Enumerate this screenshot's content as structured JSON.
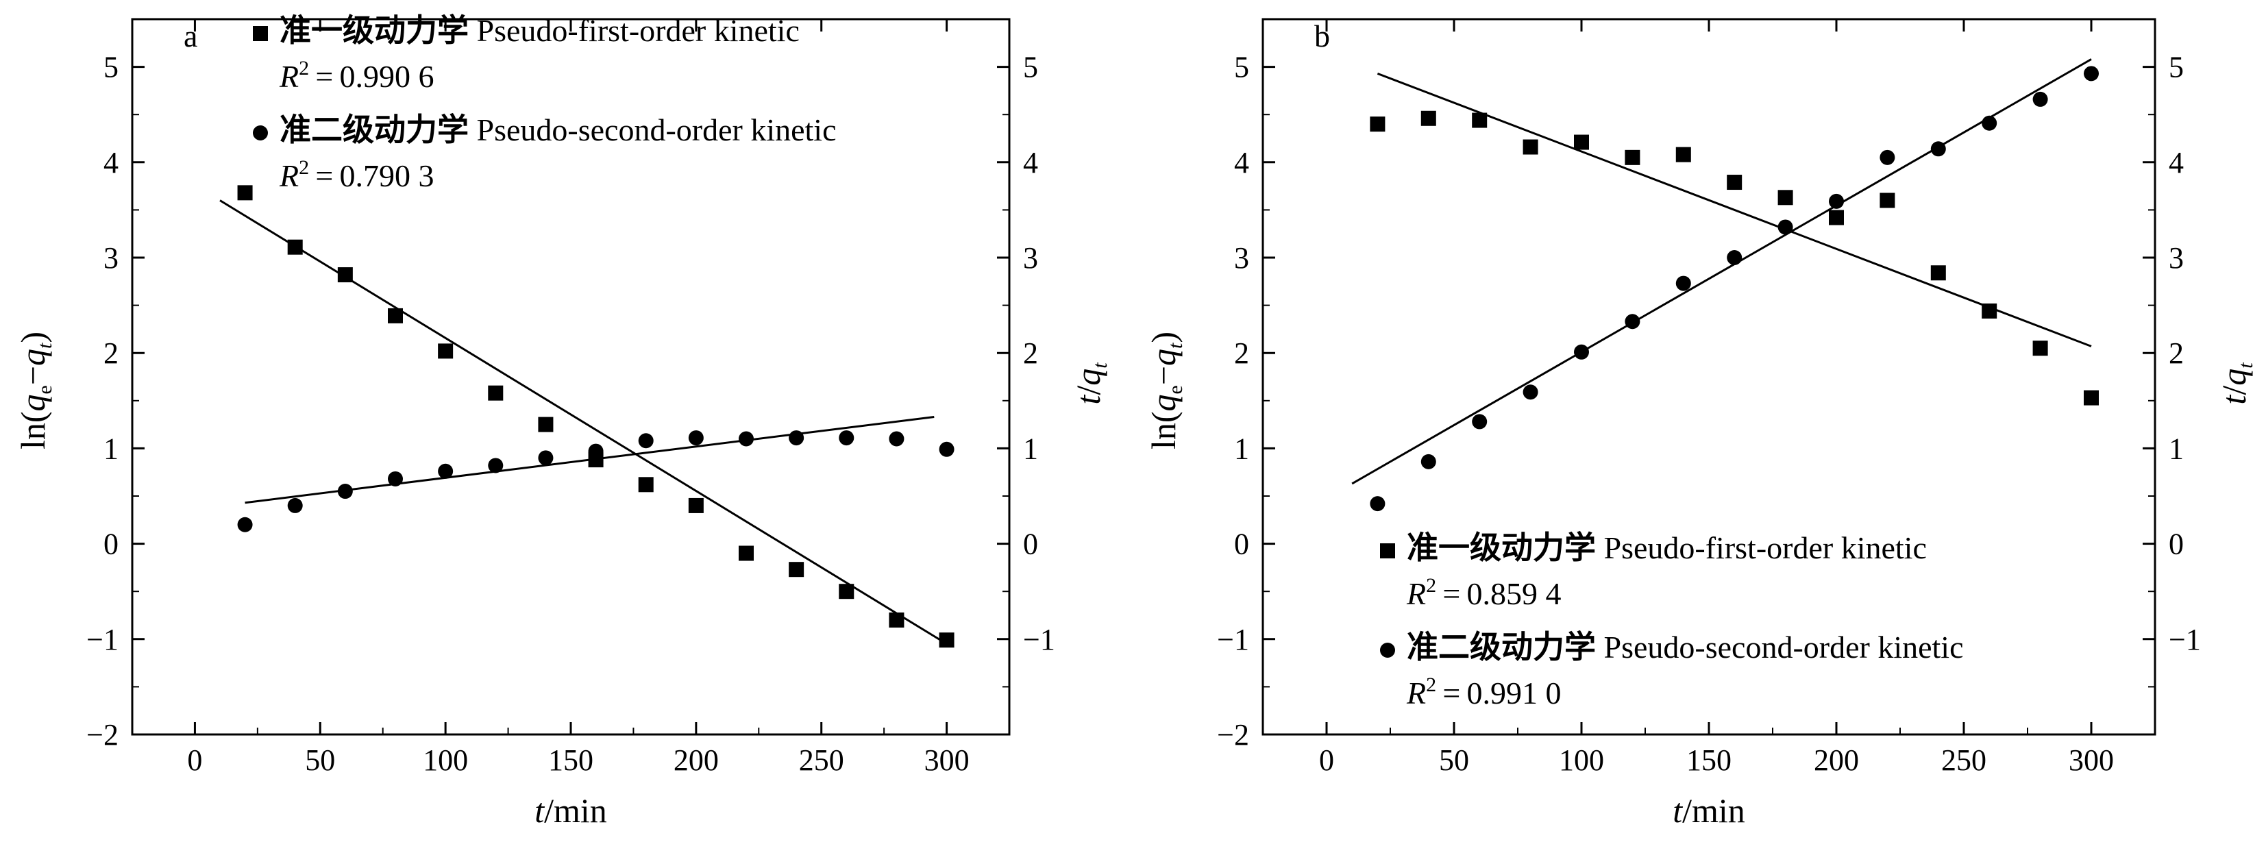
{
  "chart_data": [
    {
      "type": "scatter",
      "panel_label": "a",
      "xlabel": {
        "var": "t",
        "unit": "/min"
      },
      "ylabel_left": {
        "prefix": "ln(",
        "var1": "q",
        "sub1": "e",
        "mid": "−",
        "var2": "q",
        "sub2": "t",
        "suffix": ")"
      },
      "ylabel_right": {
        "var1": "t",
        "slash": "/",
        "var2": "q",
        "sub2": "t"
      },
      "xlim": [
        -25,
        325
      ],
      "ylim_left": [
        -2,
        5.5
      ],
      "ylim_right": [
        -2,
        5.5
      ],
      "xticks": [
        0,
        50,
        100,
        150,
        200,
        250,
        300
      ],
      "xtick_labels": [
        "0",
        "50",
        "100",
        "150",
        "200",
        "250",
        "300"
      ],
      "yticks_left": [
        -2,
        -1,
        0,
        1,
        2,
        3,
        4,
        5
      ],
      "ytick_labels_left": [
        "−2",
        "−1",
        "0",
        "1",
        "2",
        "3",
        "4",
        "5"
      ],
      "yticks_right": [
        -1,
        0,
        1,
        2,
        3,
        4,
        5
      ],
      "ytick_labels_right": [
        "−1",
        "0",
        "1",
        "2",
        "3",
        "4",
        "5"
      ],
      "legend_position": "top-right",
      "series": [
        {
          "name": "准一级动力学 Pseudo-first-order kinetic",
          "name_cn": "准一级动力学",
          "name_en": "Pseudo-first-order kinetic",
          "r2_value": "0.990 6",
          "marker": "square",
          "axis": "left",
          "x": [
            20,
            40,
            60,
            80,
            100,
            120,
            140,
            160,
            180,
            200,
            220,
            240,
            260,
            280,
            300
          ],
          "y": [
            3.68,
            3.11,
            2.82,
            2.39,
            2.02,
            1.58,
            1.25,
            0.88,
            0.62,
            0.4,
            -0.1,
            -0.27,
            -0.5,
            -0.8,
            -1.01
          ],
          "fit": {
            "x": [
              10,
              300
            ],
            "y": [
              3.6,
              -1.05
            ]
          }
        },
        {
          "name": "准二级动力学 Pseudo-second-order kinetic",
          "name_cn": "准二级动力学",
          "name_en": "Pseudo-second-order kinetic",
          "r2_value": "0.790 3",
          "marker": "circle",
          "axis": "right",
          "x": [
            20,
            40,
            60,
            80,
            100,
            120,
            140,
            160,
            180,
            200,
            220,
            240,
            260,
            280,
            300
          ],
          "y": [
            0.2,
            0.4,
            0.55,
            0.68,
            0.76,
            0.82,
            0.9,
            0.97,
            1.08,
            1.11,
            1.1,
            1.11,
            1.11,
            1.1,
            0.99
          ],
          "fit": {
            "x": [
              20,
              295
            ],
            "y": [
              0.43,
              1.33
            ]
          }
        }
      ]
    },
    {
      "type": "scatter",
      "panel_label": "b",
      "xlabel": {
        "var": "t",
        "unit": "/min"
      },
      "ylabel_left": {
        "prefix": "ln(",
        "var1": "q",
        "sub1": "e",
        "mid": "−",
        "var2": "q",
        "sub2": "t",
        "suffix": ")"
      },
      "ylabel_right": {
        "var1": "t",
        "slash": "/",
        "var2": "q",
        "sub2": "t"
      },
      "xlim": [
        -25,
        325
      ],
      "ylim_left": [
        -2,
        5.5
      ],
      "ylim_right": [
        -2,
        5.5
      ],
      "xticks": [
        0,
        50,
        100,
        150,
        200,
        250,
        300
      ],
      "xtick_labels": [
        "0",
        "50",
        "100",
        "150",
        "200",
        "250",
        "300"
      ],
      "yticks_left": [
        -2,
        -1,
        0,
        1,
        2,
        3,
        4,
        5
      ],
      "ytick_labels_left": [
        "−2",
        "−1",
        "0",
        "1",
        "2",
        "3",
        "4",
        "5"
      ],
      "yticks_right": [
        -1,
        0,
        1,
        2,
        3,
        4,
        5
      ],
      "ytick_labels_right": [
        "−1",
        "0",
        "1",
        "2",
        "3",
        "4",
        "5"
      ],
      "legend_position": "bottom-right",
      "series": [
        {
          "name": "准一级动力学 Pseudo-first-order kinetic",
          "name_cn": "准一级动力学",
          "name_en": "Pseudo-first-order kinetic",
          "r2_value": "0.859 4",
          "marker": "square",
          "axis": "left",
          "x": [
            20,
            40,
            60,
            80,
            100,
            120,
            140,
            160,
            180,
            200,
            220,
            240,
            260,
            280,
            300
          ],
          "y": [
            4.4,
            4.46,
            4.44,
            4.16,
            4.21,
            4.05,
            4.08,
            3.79,
            3.63,
            3.42,
            3.6,
            2.84,
            2.44,
            2.05,
            1.53
          ],
          "fit": {
            "x": [
              20,
              300
            ],
            "y": [
              4.93,
              2.07
            ]
          }
        },
        {
          "name": "准二级动力学 Pseudo-second-order kinetic",
          "name_cn": "准二级动力学",
          "name_en": "Pseudo-second-order kinetic",
          "r2_value": "0.991 0",
          "marker": "circle",
          "axis": "right",
          "x": [
            20,
            40,
            60,
            80,
            100,
            120,
            140,
            160,
            180,
            200,
            220,
            240,
            260,
            280,
            300
          ],
          "y": [
            0.42,
            0.86,
            1.28,
            1.59,
            2.01,
            2.33,
            2.73,
            3.0,
            3.32,
            3.59,
            4.05,
            4.14,
            4.41,
            4.66,
            4.93
          ],
          "fit": {
            "x": [
              10,
              300
            ],
            "y": [
              0.63,
              5.08
            ]
          }
        }
      ]
    }
  ]
}
